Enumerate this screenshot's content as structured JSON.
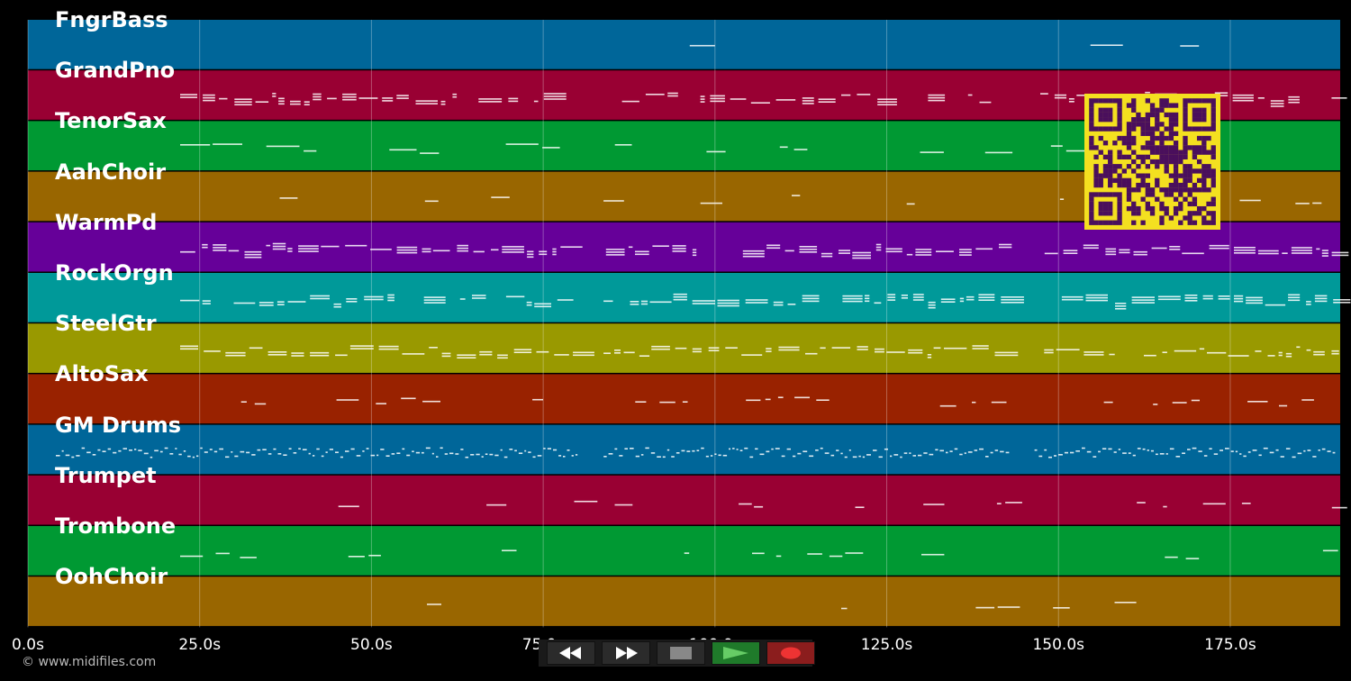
{
  "tracks": [
    {
      "name": "FngrBass",
      "color": "#006699",
      "density": 0.05,
      "style": "line"
    },
    {
      "name": "GrandPno",
      "color": "#990033",
      "density": 0.85,
      "style": "chords"
    },
    {
      "name": "TenorSax",
      "color": "#009933",
      "density": 0.35,
      "style": "line"
    },
    {
      "name": "AahChoir",
      "color": "#996600",
      "density": 0.2,
      "style": "sparse"
    },
    {
      "name": "WarmPd",
      "color": "#660099",
      "density": 0.9,
      "style": "chords"
    },
    {
      "name": "RockOrgn",
      "color": "#009999",
      "density": 0.85,
      "style": "chords"
    },
    {
      "name": "SteelGtr",
      "color": "#999900",
      "density": 0.9,
      "style": "dense"
    },
    {
      "name": "AltoSax",
      "color": "#992200",
      "density": 0.5,
      "style": "sparse"
    },
    {
      "name": "GM Drums",
      "color": "#006699",
      "density": 1.0,
      "style": "drums"
    },
    {
      "name": "Trumpet",
      "color": "#990033",
      "density": 0.25,
      "style": "sparse"
    },
    {
      "name": "Trombone",
      "color": "#009933",
      "density": 0.3,
      "style": "sparse"
    },
    {
      "name": "OohChoir",
      "color": "#996600",
      "density": 0.02,
      "style": "sparse"
    }
  ],
  "timeline": {
    "ticks": [
      "0.0s",
      "25.0s",
      "50.0s",
      "75.0s",
      "100.0s",
      "125.0s",
      "150.0s",
      "175.0s"
    ]
  },
  "copyright": "© www.midifiles.com",
  "transport": {
    "rewind_icon": "rewind-icon",
    "fast_forward_icon": "fast-forward-icon",
    "stop_icon": "stop-icon",
    "play_icon": "play-icon",
    "record_icon": "record-icon",
    "colors": {
      "play": "#1f7a2a",
      "record": "#8b1d1d",
      "play_glyph": "#66cc66",
      "record_glyph": "#ee3333"
    }
  },
  "qr": {
    "fg": "#4a0f5c",
    "bg": "#f4e020"
  }
}
